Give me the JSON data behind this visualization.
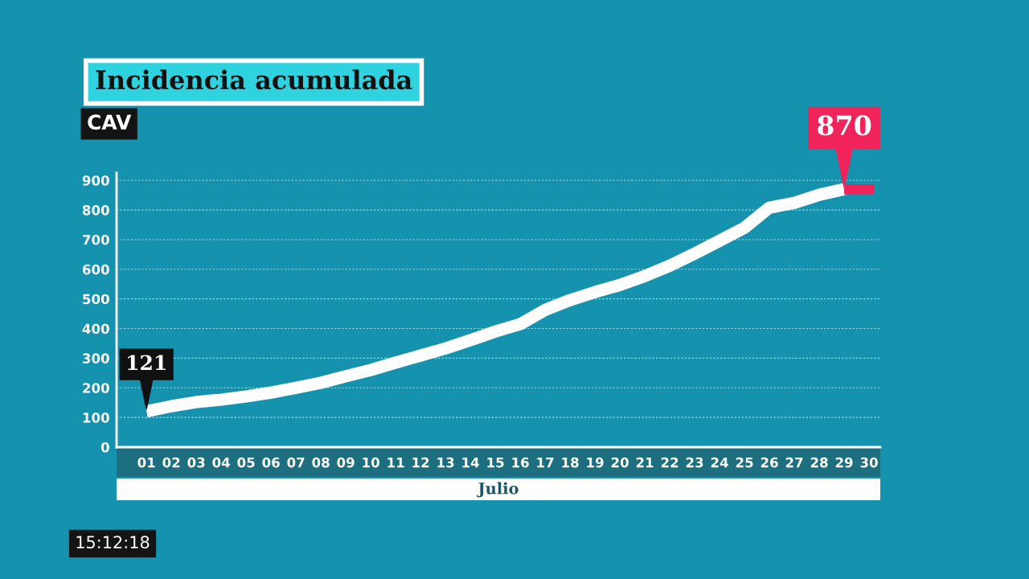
{
  "chart_data": {
    "type": "line",
    "title": "Incidencia acumulada",
    "subtitle": "CAV",
    "xlabel": "Julio",
    "categories": [
      "01",
      "02",
      "03",
      "04",
      "05",
      "06",
      "07",
      "08",
      "09",
      "10",
      "11",
      "12",
      "13",
      "14",
      "15",
      "16",
      "17",
      "18",
      "19",
      "20",
      "21",
      "22",
      "23",
      "24",
      "25",
      "26",
      "27",
      "28",
      "29",
      "30"
    ],
    "series": [
      {
        "color": "#ffffff",
        "values": [
          121,
          138,
          152,
          160,
          171,
          184,
          200,
          217,
          239,
          260,
          285,
          309,
          333,
          361,
          390,
          415,
          463,
          496,
          523,
          547,
          577,
          612,
          653,
          696,
          740,
          808,
          824,
          851,
          870,
          null
        ]
      }
    ],
    "ylim": [
      0,
      925
    ],
    "yticks": [
      0,
      100,
      200,
      300,
      400,
      500,
      600,
      700,
      800,
      900
    ],
    "grid": "y",
    "legend": false,
    "marker": "none",
    "line_style": "solid",
    "annotations": [
      {
        "text": "121",
        "x": "01",
        "y": 121
      },
      {
        "text": "870",
        "x": "29",
        "y": 870
      },
      "15:12:18"
    ]
  }
}
